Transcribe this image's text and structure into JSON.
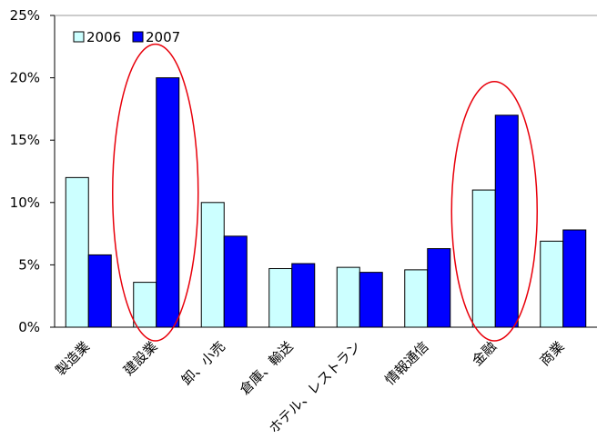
{
  "chart_data": {
    "type": "bar",
    "categories": [
      "製造業",
      "建設業",
      "卸、小売",
      "倉庫、輸送",
      "ホテル、レストラン",
      "情報通信",
      "金融",
      "商業"
    ],
    "series": [
      {
        "name": "2006",
        "values": [
          12,
          3.6,
          10,
          4.7,
          4.8,
          4.6,
          11,
          6.9
        ]
      },
      {
        "name": "2007",
        "values": [
          5.8,
          20,
          7.3,
          5.1,
          4.4,
          6.3,
          17,
          7.8
        ]
      }
    ],
    "yticks": [
      "0%",
      "5%",
      "10%",
      "15%",
      "20%",
      "25%"
    ],
    "ylim": [
      0,
      25
    ],
    "legend_position": "top-left",
    "grid": false,
    "highlighted_categories": [
      "建設業",
      "金融"
    ]
  },
  "colors": {
    "series_2006": "#ccffff",
    "series_2007": "#0000ff",
    "highlight_ellipse": "#e8000b"
  }
}
